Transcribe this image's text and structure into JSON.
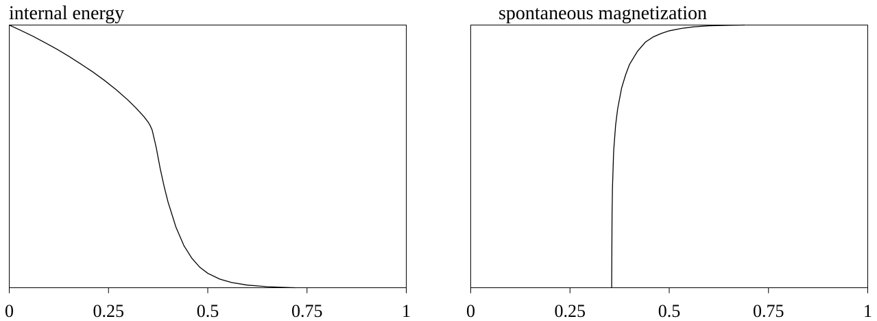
{
  "chart_data": [
    {
      "type": "line",
      "title": "internal energy",
      "xlabel": "",
      "ylabel": "",
      "xlim": [
        0,
        1
      ],
      "ylim": [
        0,
        1
      ],
      "xticks": [
        0,
        0.25,
        0.5,
        0.75,
        1
      ],
      "xtick_labels": [
        "0",
        "0.25",
        "0.5",
        "0.75",
        "1"
      ],
      "yticks": [],
      "grid": false,
      "line_color": "#000000",
      "series": [
        {
          "x": [
            0,
            0.03,
            0.06,
            0.09,
            0.12,
            0.15,
            0.18,
            0.21,
            0.24,
            0.27,
            0.3,
            0.32,
            0.34,
            0.35,
            0.355,
            0.36,
            0.37,
            0.38,
            0.39,
            0.4,
            0.42,
            0.44,
            0.46,
            0.48,
            0.5,
            0.53,
            0.56,
            0.6,
            0.65,
            0.7,
            0.72
          ],
          "y": [
            1.0,
            0.979,
            0.957,
            0.933,
            0.908,
            0.881,
            0.852,
            0.822,
            0.789,
            0.753,
            0.713,
            0.683,
            0.65,
            0.63,
            0.617,
            0.6,
            0.535,
            0.455,
            0.386,
            0.326,
            0.23,
            0.16,
            0.112,
            0.078,
            0.055,
            0.033,
            0.02,
            0.01,
            0.004,
            0.001,
            0.0
          ]
        }
      ]
    },
    {
      "type": "line",
      "title": "spontaneous magnetization",
      "xlabel": "",
      "ylabel": "",
      "xlim": [
        0,
        1
      ],
      "ylim": [
        0,
        1
      ],
      "xticks": [
        0,
        0.25,
        0.5,
        0.75,
        1
      ],
      "xtick_labels": [
        "0",
        "0.25",
        "0.5",
        "0.75",
        "1"
      ],
      "yticks": [],
      "grid": false,
      "line_color": "#000000",
      "series": [
        {
          "x": [
            0.355,
            0.356,
            0.357,
            0.36,
            0.365,
            0.37,
            0.38,
            0.39,
            0.4,
            0.42,
            0.44,
            0.46,
            0.48,
            0.5,
            0.53,
            0.56,
            0.6,
            0.65,
            0.69
          ],
          "y": [
            0.0,
            0.28,
            0.38,
            0.52,
            0.62,
            0.68,
            0.76,
            0.81,
            0.85,
            0.9,
            0.935,
            0.955,
            0.968,
            0.978,
            0.987,
            0.993,
            0.997,
            0.999,
            1.0
          ]
        }
      ]
    }
  ]
}
